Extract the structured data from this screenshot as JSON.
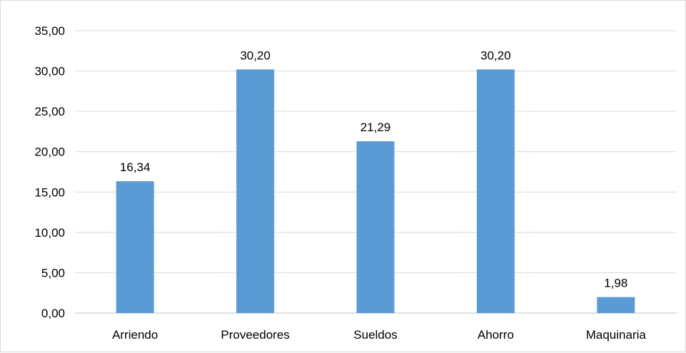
{
  "chart_data": {
    "type": "bar",
    "categories": [
      "Arriendo",
      "Proveedores",
      "Sueldos",
      "Ahorro",
      "Maquinaria"
    ],
    "values": [
      16.34,
      30.2,
      21.29,
      30.2,
      1.98
    ],
    "data_labels": [
      "16,34",
      "30,20",
      "21,29",
      "30,20",
      "1,98"
    ],
    "y_ticks": [
      0,
      5,
      10,
      15,
      20,
      25,
      30,
      35
    ],
    "y_tick_labels": [
      "0,00",
      "5,00",
      "10,00",
      "15,00",
      "20,00",
      "25,00",
      "30,00",
      "35,00"
    ],
    "ylim": [
      0,
      35
    ],
    "grid": true,
    "title": "",
    "xlabel": "",
    "ylabel": "",
    "bar_color": "#5b9bd5",
    "grid_color": "#d9d9d9",
    "axis_color": "#bfbfbf"
  }
}
